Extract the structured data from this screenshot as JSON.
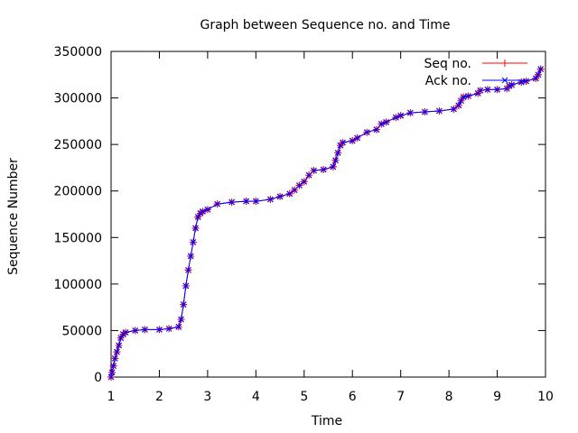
{
  "chart_data": {
    "type": "line",
    "title": "Graph between Sequence no. and Time",
    "xlabel": "Time",
    "ylabel": "Sequence Number",
    "xlim": [
      1,
      10
    ],
    "ylim": [
      0,
      350000
    ],
    "xticks": [
      1,
      2,
      3,
      4,
      5,
      6,
      7,
      8,
      9,
      10
    ],
    "yticks": [
      0,
      50000,
      100000,
      150000,
      200000,
      250000,
      300000,
      350000
    ],
    "legend_position": "top-right",
    "grid": false,
    "series": [
      {
        "name": "Seq no.",
        "color": "#ff0000",
        "marker": "plus",
        "x": [
          1.0,
          1.02,
          1.05,
          1.08,
          1.12,
          1.16,
          1.2,
          1.25,
          1.3,
          1.5,
          1.7,
          2.0,
          2.2,
          2.4,
          2.45,
          2.5,
          2.55,
          2.6,
          2.65,
          2.7,
          2.75,
          2.8,
          2.85,
          2.9,
          3.0,
          3.2,
          3.5,
          3.8,
          4.0,
          4.3,
          4.5,
          4.7,
          4.8,
          4.9,
          5.0,
          5.1,
          5.2,
          5.4,
          5.6,
          5.65,
          5.7,
          5.75,
          5.8,
          6.0,
          6.1,
          6.3,
          6.5,
          6.6,
          6.7,
          6.9,
          7.0,
          7.2,
          7.5,
          7.8,
          8.1,
          8.2,
          8.25,
          8.3,
          8.4,
          8.6,
          8.65,
          8.8,
          9.0,
          9.2,
          9.25,
          9.3,
          9.5,
          9.6,
          9.8,
          9.85,
          9.9
        ],
        "y": [
          0,
          5000,
          12000,
          20000,
          27000,
          34000,
          42000,
          46000,
          48000,
          50000,
          51000,
          51000,
          52000,
          54000,
          62000,
          78000,
          98000,
          115000,
          130000,
          145000,
          160000,
          172000,
          176000,
          178000,
          180000,
          186000,
          188000,
          189000,
          189000,
          191000,
          194000,
          197000,
          201000,
          206000,
          210000,
          217000,
          222000,
          223000,
          226000,
          233000,
          241000,
          249000,
          252000,
          254000,
          257000,
          263000,
          266000,
          272000,
          274000,
          279000,
          281000,
          284000,
          285000,
          286000,
          288000,
          292000,
          297000,
          301000,
          302000,
          305000,
          308000,
          309000,
          309000,
          310000,
          313000,
          314000,
          317000,
          318000,
          321000,
          325000,
          331000
        ]
      },
      {
        "name": "Ack no.",
        "color": "#0000ff",
        "marker": "cross",
        "x": [
          1.0,
          1.02,
          1.05,
          1.08,
          1.12,
          1.16,
          1.2,
          1.25,
          1.3,
          1.5,
          1.7,
          2.0,
          2.2,
          2.4,
          2.45,
          2.5,
          2.55,
          2.6,
          2.65,
          2.7,
          2.75,
          2.8,
          2.85,
          2.9,
          3.0,
          3.2,
          3.5,
          3.8,
          4.0,
          4.3,
          4.5,
          4.7,
          4.8,
          4.9,
          5.0,
          5.1,
          5.2,
          5.4,
          5.6,
          5.65,
          5.7,
          5.75,
          5.8,
          6.0,
          6.1,
          6.3,
          6.5,
          6.6,
          6.7,
          6.9,
          7.0,
          7.2,
          7.5,
          7.8,
          8.1,
          8.2,
          8.25,
          8.3,
          8.4,
          8.6,
          8.65,
          8.8,
          9.0,
          9.2,
          9.25,
          9.3,
          9.5,
          9.6,
          9.8,
          9.85,
          9.9
        ],
        "y": [
          0,
          5000,
          12000,
          20000,
          27000,
          34000,
          42000,
          46000,
          48000,
          50000,
          51000,
          51000,
          52000,
          54000,
          62000,
          78000,
          98000,
          115000,
          130000,
          145000,
          160000,
          172000,
          176000,
          178000,
          180000,
          186000,
          188000,
          189000,
          189000,
          191000,
          194000,
          197000,
          201000,
          206000,
          210000,
          217000,
          222000,
          223000,
          226000,
          233000,
          241000,
          249000,
          252000,
          254000,
          257000,
          263000,
          266000,
          272000,
          274000,
          279000,
          281000,
          284000,
          285000,
          286000,
          288000,
          292000,
          297000,
          301000,
          302000,
          305000,
          308000,
          309000,
          309000,
          310000,
          313000,
          314000,
          317000,
          318000,
          321000,
          325000,
          331000
        ]
      }
    ]
  }
}
